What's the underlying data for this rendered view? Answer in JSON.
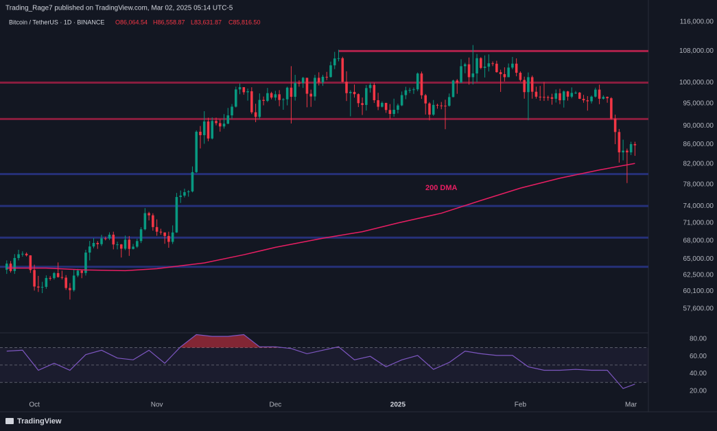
{
  "header": {
    "publisher": "Trading_Rage7 published on TradingView.com, Mar 02, 2025 05:14 UTC-5",
    "symbol": "Bitcoin / TetherUS · 1D · BINANCE",
    "ohlc_labels": [
      "O86,064.54",
      "H86,558.87",
      "L83,631.87",
      "C85,816.50"
    ],
    "brand": "TradingView"
  },
  "chart_data": [
    {
      "type": "candlestick",
      "up_color": "#089981",
      "down_color": "#f23645",
      "log": true,
      "xlim": [
        -1.7,
        162.4
      ],
      "ylim": [
        54300,
        117900
      ],
      "xticks": [
        {
          "value": 7,
          "label": "Oct"
        },
        {
          "value": 38,
          "label": "Nov"
        },
        {
          "value": 68,
          "label": "Dec"
        },
        {
          "value": 99,
          "label": "2025"
        },
        {
          "value": 130,
          "label": "Feb"
        },
        {
          "value": 158,
          "label": "Mar"
        }
      ],
      "yticks": [
        {
          "value": 116000,
          "label": "116,000.00"
        },
        {
          "value": 108000,
          "label": "108,000.00"
        },
        {
          "value": 100000,
          "label": "100,000.00"
        },
        {
          "value": 95000,
          "label": "95,000.00"
        },
        {
          "value": 90000,
          "label": "90,000.00"
        },
        {
          "value": 86000,
          "label": "86,000.00"
        },
        {
          "value": 82000,
          "label": "82,000.00"
        },
        {
          "value": 78000,
          "label": "78,000.00"
        },
        {
          "value": 74000,
          "label": "74,000.00"
        },
        {
          "value": 71000,
          "label": "71,000.00"
        },
        {
          "value": 68000,
          "label": "68,000.00"
        },
        {
          "value": 65000,
          "label": "65,000.00"
        },
        {
          "value": 62500,
          "label": "62,500.00"
        },
        {
          "value": 60100,
          "label": "60,100.00"
        },
        {
          "value": 57600,
          "label": "57,600.00"
        }
      ],
      "levels": [
        {
          "value": 108000,
          "color": "#b0224c",
          "x_start": 84
        },
        {
          "value": 100000,
          "color": "#8c1d3f"
        },
        {
          "value": 91500,
          "color": "#8c1d3f"
        },
        {
          "value": 80000,
          "color": "#26317a"
        },
        {
          "value": 74000,
          "color": "#26317a"
        },
        {
          "value": 68500,
          "color": "#26317a"
        },
        {
          "value": 63800,
          "color": "#26317a"
        }
      ],
      "ma": {
        "name": "200 DMA",
        "color": "#e91e63",
        "x": [
          0,
          10,
          20,
          30,
          38,
          50,
          60,
          68,
          80,
          90,
          99,
          110,
          120,
          130,
          140,
          150,
          159
        ],
        "values": [
          63600,
          63600,
          63300,
          63200,
          63500,
          64400,
          65700,
          66900,
          68400,
          69500,
          71000,
          72700,
          75000,
          77300,
          79200,
          80800,
          82100
        ]
      },
      "ohlc": [
        [
          63330,
          64800,
          62700,
          64300
        ],
        [
          64300,
          64700,
          62900,
          63150
        ],
        [
          63150,
          65800,
          62700,
          65180
        ],
        [
          65180,
          66500,
          64800,
          65780
        ],
        [
          65780,
          66250,
          65400,
          65860
        ],
        [
          65860,
          66080,
          65420,
          65600
        ],
        [
          65600,
          65620,
          62850,
          63300
        ],
        [
          63300,
          64130,
          60200,
          60800
        ],
        [
          60800,
          62400,
          60000,
          60650
        ],
        [
          60650,
          61500,
          59830,
          60750
        ],
        [
          60750,
          62480,
          60460,
          62080
        ],
        [
          62080,
          62370,
          61700,
          62060
        ],
        [
          62060,
          63000,
          61840,
          62820
        ],
        [
          62820,
          64480,
          62130,
          62220
        ],
        [
          62220,
          63200,
          61860,
          62130
        ],
        [
          62130,
          62520,
          60300,
          60580
        ],
        [
          60580,
          61320,
          58900,
          60270
        ],
        [
          60270,
          63420,
          60050,
          62450
        ],
        [
          62450,
          63480,
          62200,
          63200
        ],
        [
          63200,
          63280,
          62050,
          62850
        ],
        [
          62850,
          66500,
          62450,
          66050
        ],
        [
          66050,
          67950,
          64800,
          67040
        ],
        [
          67040,
          68420,
          66750,
          67620
        ],
        [
          67620,
          67930,
          66650,
          67420
        ],
        [
          67420,
          68980,
          67120,
          68380
        ],
        [
          68380,
          68670,
          68050,
          68360
        ],
        [
          68360,
          69400,
          68100,
          69000
        ],
        [
          69000,
          69500,
          66570,
          67370
        ],
        [
          67370,
          67830,
          66570,
          67380
        ],
        [
          67380,
          67450,
          65260,
          66680
        ],
        [
          66680,
          68850,
          66450,
          68160
        ],
        [
          68160,
          68770,
          65520,
          66640
        ],
        [
          66640,
          67450,
          66560,
          67010
        ],
        [
          67010,
          68320,
          66800,
          67930
        ],
        [
          67930,
          70270,
          67600,
          69910
        ],
        [
          69910,
          73620,
          69730,
          72720
        ],
        [
          72720,
          72960,
          71440,
          72340
        ],
        [
          72340,
          72700,
          69680,
          70290
        ],
        [
          70290,
          71630,
          68820,
          69500
        ],
        [
          69500,
          70000,
          69000,
          69370
        ],
        [
          69370,
          69400,
          67480,
          68780
        ],
        [
          68780,
          69500,
          66830,
          67800
        ],
        [
          67800,
          70580,
          67450,
          69370
        ],
        [
          69370,
          76400,
          69300,
          75640
        ],
        [
          75640,
          76850,
          74550,
          75900
        ],
        [
          75900,
          77200,
          75560,
          76540
        ],
        [
          76540,
          76930,
          75700,
          76680
        ],
        [
          76680,
          81500,
          76500,
          80370
        ],
        [
          80370,
          89000,
          80220,
          88700
        ],
        [
          88700,
          89950,
          85150,
          87960
        ],
        [
          87960,
          93260,
          86130,
          90950
        ],
        [
          90950,
          91790,
          86670,
          87250
        ],
        [
          87250,
          91850,
          87050,
          91060
        ],
        [
          91060,
          91800,
          90100,
          90580
        ],
        [
          90580,
          91450,
          88720,
          89850
        ],
        [
          89850,
          92600,
          89380,
          90460
        ],
        [
          90460,
          94000,
          90360,
          92310
        ],
        [
          92310,
          94900,
          91500,
          94290
        ],
        [
          94290,
          99000,
          94100,
          98350
        ],
        [
          98350,
          99800,
          97200,
          98890
        ],
        [
          98890,
          98900,
          97100,
          97670
        ],
        [
          97670,
          98550,
          95700,
          97900
        ],
        [
          97900,
          98870,
          92600,
          93010
        ],
        [
          93010,
          94970,
          90790,
          91970
        ],
        [
          91970,
          97400,
          91500,
          95860
        ],
        [
          95860,
          96650,
          94600,
          95640
        ],
        [
          95640,
          98700,
          95350,
          97460
        ],
        [
          97460,
          97780,
          96000,
          96410
        ],
        [
          96410,
          98000,
          95700,
          97190
        ],
        [
          97190,
          98170,
          94400,
          95840
        ],
        [
          95840,
          96300,
          93580,
          96000
        ],
        [
          96000,
          99000,
          94600,
          98770
        ],
        [
          98770,
          104090,
          90500,
          96590
        ],
        [
          96590,
          101900,
          95700,
          99920
        ],
        [
          99920,
          100550,
          99000,
          99900
        ],
        [
          99900,
          101400,
          98700,
          101170
        ],
        [
          101170,
          101200,
          94150,
          97320
        ],
        [
          97320,
          98300,
          94250,
          96670
        ],
        [
          96670,
          101900,
          95700,
          101170
        ],
        [
          101170,
          102540,
          99300,
          100040
        ],
        [
          100040,
          101900,
          99200,
          101420
        ],
        [
          101420,
          102650,
          100600,
          101370
        ],
        [
          101370,
          105250,
          101230,
          104300
        ],
        [
          104300,
          107780,
          103340,
          106060
        ],
        [
          106060,
          108350,
          105320,
          106130
        ],
        [
          106130,
          106500,
          100000,
          100200
        ],
        [
          100200,
          102800,
          95600,
          97460
        ],
        [
          97460,
          98150,
          92100,
          97750
        ],
        [
          97750,
          99540,
          96400,
          97220
        ],
        [
          97220,
          97400,
          94200,
          95100
        ],
        [
          95100,
          96420,
          92400,
          94690
        ],
        [
          94690,
          99400,
          93400,
          98670
        ],
        [
          98670,
          99960,
          97600,
          99420
        ],
        [
          99420,
          99960,
          95150,
          95790
        ],
        [
          95790,
          97540,
          93500,
          94270
        ],
        [
          94270,
          95500,
          94110,
          95160
        ],
        [
          95160,
          95200,
          92880,
          93530
        ],
        [
          93530,
          94900,
          91500,
          92640
        ],
        [
          92640,
          96150,
          92000,
          93580
        ],
        [
          93580,
          95000,
          92750,
          94590
        ],
        [
          94590,
          97840,
          94410,
          96990
        ],
        [
          96990,
          98980,
          96030,
          98140
        ],
        [
          98140,
          98770,
          97500,
          98220
        ],
        [
          98220,
          98810,
          97270,
          98360
        ],
        [
          98360,
          102500,
          97920,
          102240
        ],
        [
          102240,
          102720,
          96100,
          96950
        ],
        [
          96950,
          97260,
          92500,
          95040
        ],
        [
          95040,
          95350,
          91200,
          92480
        ],
        [
          92480,
          95840,
          92200,
          94700
        ],
        [
          94700,
          94980,
          93830,
          94570
        ],
        [
          94570,
          95380,
          93700,
          94520
        ],
        [
          94520,
          95900,
          89250,
          94500
        ],
        [
          94500,
          97370,
          94300,
          96530
        ],
        [
          96530,
          100700,
          96470,
          100500
        ],
        [
          100500,
          100870,
          97300,
          99990
        ],
        [
          99990,
          105860,
          99950,
          104080
        ],
        [
          104080,
          104950,
          102300,
          104560
        ],
        [
          104560,
          106300,
          99500,
          101330
        ],
        [
          101330,
          109590,
          99550,
          102260
        ],
        [
          102260,
          107240,
          100100,
          106140
        ],
        [
          106140,
          106400,
          103300,
          103650
        ],
        [
          103650,
          106850,
          101250,
          103960
        ],
        [
          103960,
          107120,
          102750,
          104820
        ],
        [
          104820,
          105290,
          104100,
          104710
        ],
        [
          104710,
          105470,
          102460,
          102580
        ],
        [
          102580,
          103200,
          97750,
          102080
        ],
        [
          102080,
          103800,
          100270,
          101330
        ],
        [
          101330,
          104780,
          101330,
          103730
        ],
        [
          103730,
          106460,
          103300,
          104730
        ],
        [
          104730,
          106090,
          101550,
          102430
        ],
        [
          102430,
          102780,
          100280,
          100640
        ],
        [
          100640,
          101460,
          96150,
          97700
        ],
        [
          97700,
          102500,
          91230,
          101330
        ],
        [
          101330,
          101740,
          96150,
          97790
        ],
        [
          97790,
          99000,
          96160,
          96610
        ],
        [
          96610,
          99200,
          95670,
          96560
        ],
        [
          96560,
          100140,
          95620,
          96500
        ],
        [
          96500,
          96880,
          95690,
          96470
        ],
        [
          96470,
          97320,
          94750,
          96130
        ],
        [
          96130,
          98340,
          95250,
          97430
        ],
        [
          97430,
          98500,
          94880,
          95780
        ],
        [
          95780,
          98120,
          94090,
          97870
        ],
        [
          97870,
          98000,
          95700,
          96620
        ],
        [
          96620,
          98830,
          96250,
          97510
        ],
        [
          97510,
          97970,
          97250,
          97570
        ],
        [
          97570,
          97730,
          96060,
          96120
        ],
        [
          96120,
          97050,
          95200,
          95770
        ],
        [
          95770,
          96750,
          93390,
          95540
        ],
        [
          95540,
          96900,
          95030,
          96630
        ],
        [
          96630,
          98770,
          96420,
          98300
        ],
        [
          98300,
          99500,
          94870,
          96130
        ],
        [
          96130,
          96950,
          95950,
          96580
        ],
        [
          96580,
          96670,
          95200,
          96250
        ],
        [
          96250,
          96500,
          91350,
          91550
        ],
        [
          91550,
          92480,
          86050,
          88640
        ],
        [
          88640,
          89300,
          82260,
          84350
        ],
        [
          84350,
          87000,
          82720,
          84700
        ],
        [
          84700,
          85120,
          78260,
          84350
        ],
        [
          84350,
          86560,
          83800,
          86060
        ],
        [
          86064.54,
          86558.87,
          83631.87,
          85816.5
        ]
      ]
    },
    {
      "type": "line",
      "color": "#7e57c2",
      "fill_color": "#f23645",
      "xlim": [
        -1.7,
        162.4
      ],
      "ylim": [
        12,
        87
      ],
      "yticks": [
        {
          "value": 80,
          "label": "80.00"
        },
        {
          "value": 60,
          "label": "60.00"
        },
        {
          "value": 40,
          "label": "40.00"
        },
        {
          "value": 20,
          "label": "20.00"
        }
      ],
      "levels": [
        70,
        50,
        30
      ],
      "x": [
        0,
        4,
        8,
        12,
        16,
        20,
        24,
        28,
        32,
        36,
        40,
        44,
        48,
        52,
        56,
        60,
        64,
        68,
        72,
        76,
        80,
        84,
        88,
        92,
        96,
        100,
        104,
        108,
        112,
        116,
        120,
        124,
        128,
        132,
        136,
        140,
        144,
        148,
        152,
        156,
        159
      ],
      "values": [
        66,
        67,
        44,
        52,
        44,
        62,
        67,
        58,
        56,
        67,
        52,
        71,
        85,
        83,
        83,
        85,
        71,
        71,
        69,
        63,
        67,
        71,
        56,
        60,
        48,
        56,
        61,
        45,
        53,
        66,
        63,
        61,
        61,
        48,
        44,
        44,
        45,
        44,
        44,
        23,
        28
      ]
    }
  ]
}
